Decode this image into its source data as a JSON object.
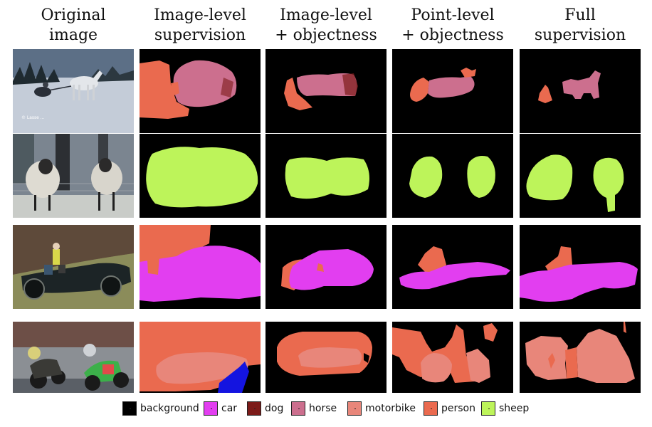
{
  "headers": [
    {
      "line1": "Original",
      "line2": "image"
    },
    {
      "line1": "Image-level",
      "line2": "supervision"
    },
    {
      "line1": "Image-level",
      "line2": "+ objectness"
    },
    {
      "line1": "Point-level",
      "line2": "+ objectness"
    },
    {
      "line1": "Full",
      "line2": "supervision"
    }
  ],
  "colors": {
    "background": "#000000",
    "car": "#e23ef0",
    "dog": "#7c1b19",
    "horse": "#cc6f8e",
    "motorbike": "#e8867a",
    "person": "#ea6a4f",
    "sheep": "#bdf45a",
    "blue": "#1414e0"
  },
  "legend": [
    {
      "label": "background",
      "color": "#000000"
    },
    {
      "label": "car",
      "color": "#e23ef0"
    },
    {
      "label": "dog",
      "color": "#7c1b19"
    },
    {
      "label": "horse",
      "color": "#cc6f8e"
    },
    {
      "label": "motorbike",
      "color": "#e8867a"
    },
    {
      "label": "person",
      "color": "#ea6a4f"
    },
    {
      "label": "sheep",
      "color": "#bdf45a"
    }
  ],
  "photo_text": "© Lasse ...",
  "rows": [
    "horse-sled",
    "sheep-pair",
    "vintage-car",
    "motorbike-race"
  ]
}
